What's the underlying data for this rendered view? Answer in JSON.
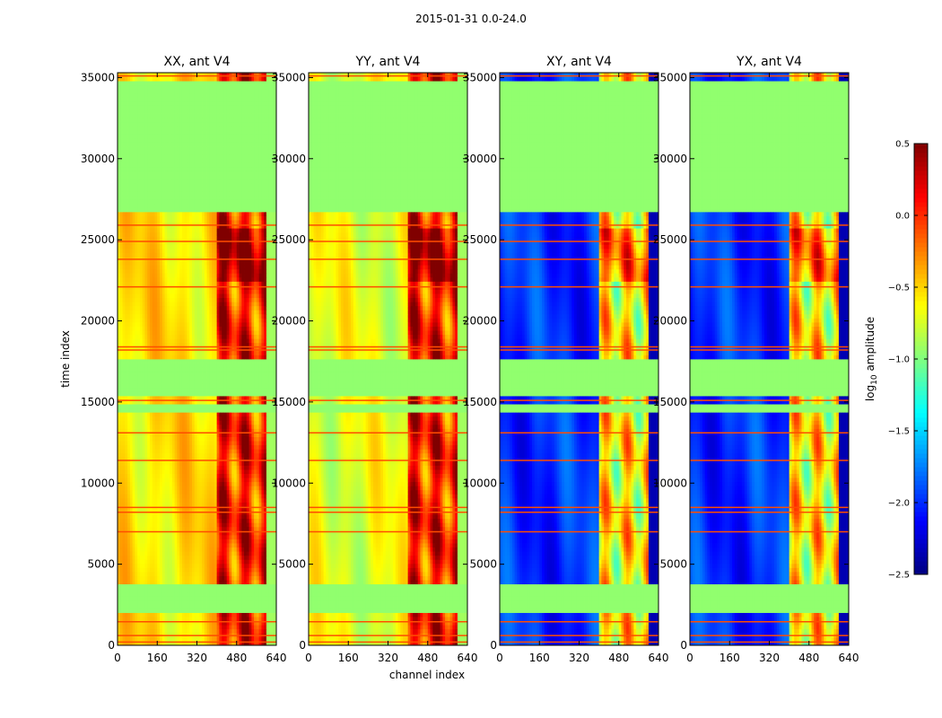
{
  "figure": {
    "suptitle": "2015-01-31 0.0-24.0"
  },
  "chart_data": {
    "type": "heatmap",
    "title": "2015-01-31 0.0-24.0",
    "xlabel": "channel index",
    "ylabel": "time index",
    "xlim": [
      0,
      640
    ],
    "ylim": [
      0,
      35300
    ],
    "xticks": [
      0,
      160,
      320,
      480,
      640
    ],
    "yticks": [
      0,
      5000,
      10000,
      15000,
      20000,
      25000,
      30000,
      35000
    ],
    "colormap": "jet",
    "colorbar": {
      "label_prefix": "log",
      "label_sub": "10",
      "label_suffix": " amplitude",
      "range": [
        -2.5,
        0.5
      ],
      "ticks": [
        -2.5,
        -2.0,
        -1.5,
        -1.0,
        -0.5,
        0.0,
        0.5
      ],
      "tick_labels": [
        "−2.5",
        "−2.0",
        "−1.5",
        "−1.0",
        "−0.5",
        "0.0",
        "0.5"
      ]
    },
    "flagged_value": -0.95,
    "flagged_time_ranges": [
      [
        1900,
        3700
      ],
      [
        14400,
        15000
      ],
      [
        15300,
        17600
      ],
      [
        26700,
        34900
      ]
    ],
    "hot_lines": [
      200,
      600,
      1450,
      7000,
      8200,
      8500,
      11400,
      13100,
      15100,
      18200,
      18400,
      22100,
      23800,
      24900,
      25900,
      35100
    ],
    "hot_line_value": -0.1,
    "panels": [
      {
        "title": "XX, ant V4",
        "base_level": -0.55,
        "band_start_channel": 405,
        "band_level": 0.05,
        "cross_hand": false
      },
      {
        "title": "YY, ant V4",
        "base_level": -0.7,
        "band_start_channel": 405,
        "band_level": 0.05,
        "cross_hand": false
      },
      {
        "title": "XY, ant V4",
        "base_level": -2.0,
        "band_start_channel": 405,
        "band_level": -0.6,
        "cross_hand": true
      },
      {
        "title": "YX, ant V4",
        "base_level": -2.0,
        "band_start_channel": 405,
        "band_level": -0.6,
        "cross_hand": true
      }
    ]
  }
}
